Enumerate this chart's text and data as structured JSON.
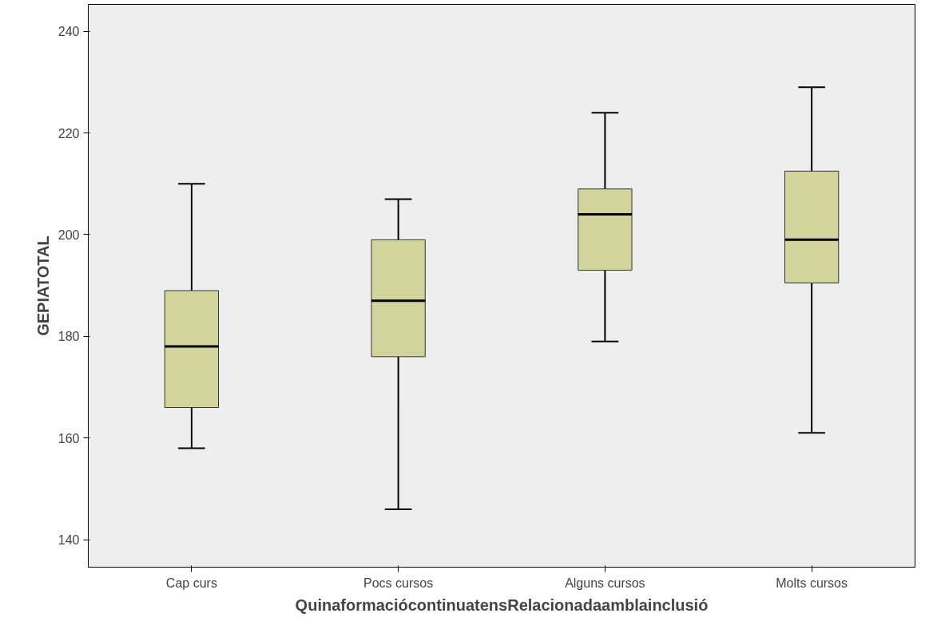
{
  "chart_data": {
    "type": "box",
    "xlabel": "QuinaformaciócontinuatensRelacionadaamblainclusió",
    "ylabel": "GEPIATOTAL",
    "categories": [
      "Cap curs",
      "Pocs cursos",
      "Alguns cursos",
      "Molts cursos"
    ],
    "boxes": [
      {
        "low": 158,
        "q1": 166,
        "median": 178,
        "q3": 189,
        "high": 210
      },
      {
        "low": 146,
        "q1": 176,
        "median": 187,
        "q3": 199,
        "high": 207
      },
      {
        "low": 179,
        "q1": 193,
        "median": 204,
        "q3": 209,
        "high": 224
      },
      {
        "low": 161,
        "q1": 190.5,
        "median": 199,
        "q3": 212.5,
        "high": 229
      }
    ],
    "color": "#d3d39c",
    "ylim": [
      134.6,
      245.3
    ],
    "yticks": [
      140,
      160,
      180,
      200,
      220,
      240
    ],
    "grid": false
  }
}
